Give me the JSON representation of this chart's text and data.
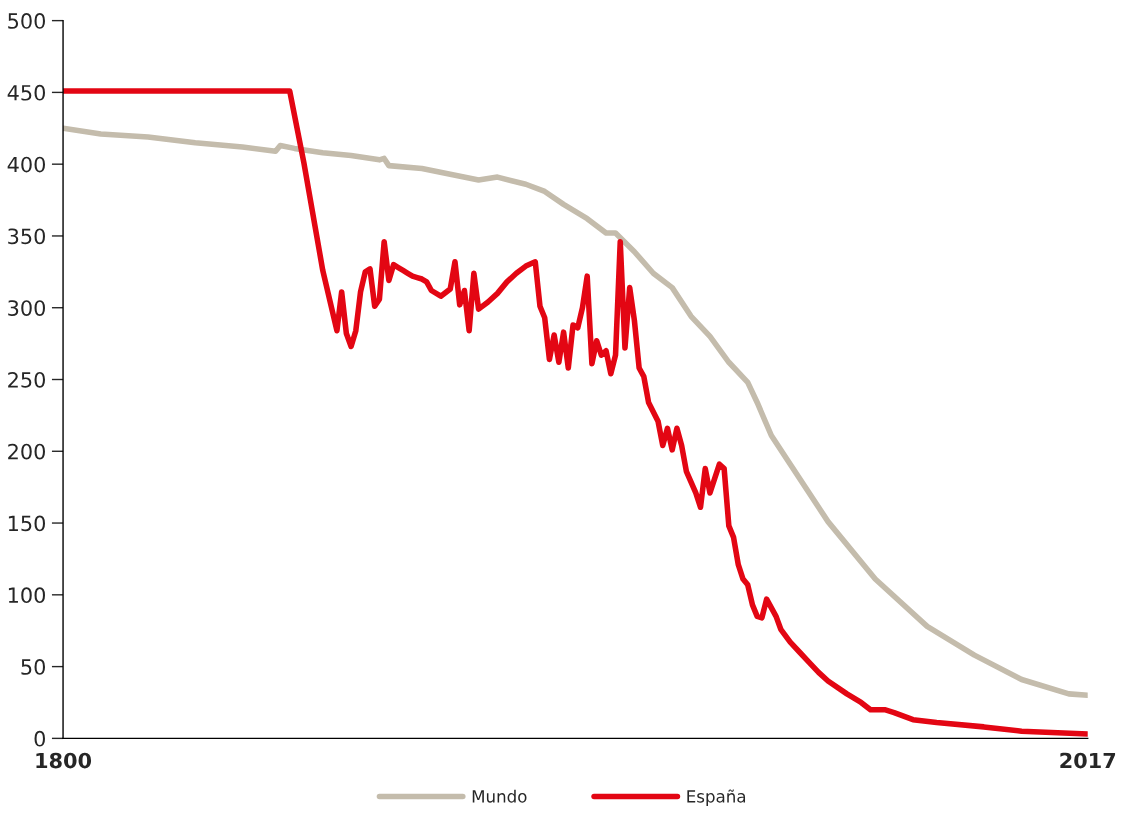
{
  "chart_data": {
    "type": "line",
    "xlim": [
      1800,
      2017
    ],
    "xticks": [
      1800,
      2017
    ],
    "ylim": [
      0,
      500
    ],
    "yticks": [
      0,
      50,
      100,
      150,
      200,
      250,
      300,
      350,
      400,
      450,
      500
    ],
    "grid": false,
    "legend": "bottom",
    "line_style": "solid",
    "marker": "none",
    "series": [
      {
        "name": "Mundo",
        "color": "#c4bcac",
        "x": [
          1800,
          1808,
          1818,
          1828,
          1838,
          1845,
          1846,
          1849,
          1855,
          1861,
          1867,
          1868,
          1869,
          1876,
          1882,
          1888,
          1892,
          1898,
          1902,
          1906,
          1911,
          1915,
          1917,
          1921,
          1925,
          1929,
          1933,
          1937,
          1941,
          1945,
          1947,
          1950,
          1954,
          1962,
          1972,
          1983,
          1993,
          2003,
          2013,
          2017
        ],
        "values": [
          425,
          421,
          419,
          415,
          412,
          409,
          413,
          411,
          408,
          406,
          403,
          404,
          399,
          397,
          393,
          389,
          391,
          386,
          381,
          372,
          362,
          352,
          352,
          339,
          324,
          314,
          294,
          280,
          262,
          248,
          234,
          211,
          191,
          151,
          111,
          78,
          58,
          41,
          31,
          30
        ]
      },
      {
        "name": "España",
        "color": "#e30613",
        "x": [
          1800,
          1848,
          1851,
          1855,
          1858,
          1859,
          1860,
          1861,
          1862,
          1863,
          1864,
          1865,
          1866,
          1867,
          1868,
          1869,
          1870,
          1871,
          1872,
          1873,
          1874,
          1875,
          1876,
          1877,
          1878,
          1880,
          1882,
          1883,
          1884,
          1885,
          1886,
          1887,
          1888,
          1890,
          1892,
          1894,
          1896,
          1898,
          1900,
          1901,
          1902,
          1903,
          1904,
          1905,
          1906,
          1907,
          1908,
          1909,
          1910,
          1911,
          1912,
          1913,
          1914,
          1915,
          1916,
          1917,
          1918,
          1919,
          1920,
          1921,
          1922,
          1923,
          1924,
          1926,
          1927,
          1928,
          1929,
          1930,
          1931,
          1932,
          1934,
          1935,
          1936,
          1937,
          1939,
          1940,
          1941,
          1942,
          1943,
          1944,
          1945,
          1946,
          1947,
          1948,
          1949,
          1951,
          1952,
          1954,
          1956,
          1958,
          1960,
          1962,
          1966,
          1969,
          1971,
          1974,
          1976,
          1980,
          1985,
          1995,
          2003,
          2017
        ],
        "values": [
          451,
          451,
          401,
          326,
          284,
          311,
          282,
          273,
          284,
          311,
          325,
          327,
          301,
          306,
          346,
          319,
          330,
          328,
          326,
          324,
          322,
          321,
          320,
          318,
          312,
          308,
          313,
          332,
          302,
          312,
          284,
          324,
          299,
          304,
          310,
          318,
          324,
          329,
          332,
          301,
          293,
          264,
          281,
          262,
          283,
          258,
          288,
          286,
          300,
          322,
          261,
          277,
          267,
          270,
          254,
          267,
          346,
          272,
          314,
          291,
          258,
          252,
          234,
          221,
          204,
          216,
          201,
          216,
          204,
          186,
          171,
          161,
          188,
          171,
          191,
          188,
          148,
          140,
          121,
          111,
          107,
          93,
          85,
          84,
          97,
          85,
          76,
          67,
          60,
          53,
          46,
          40,
          31,
          25,
          20,
          20,
          18,
          13,
          11,
          8,
          5,
          3
        ]
      }
    ]
  }
}
